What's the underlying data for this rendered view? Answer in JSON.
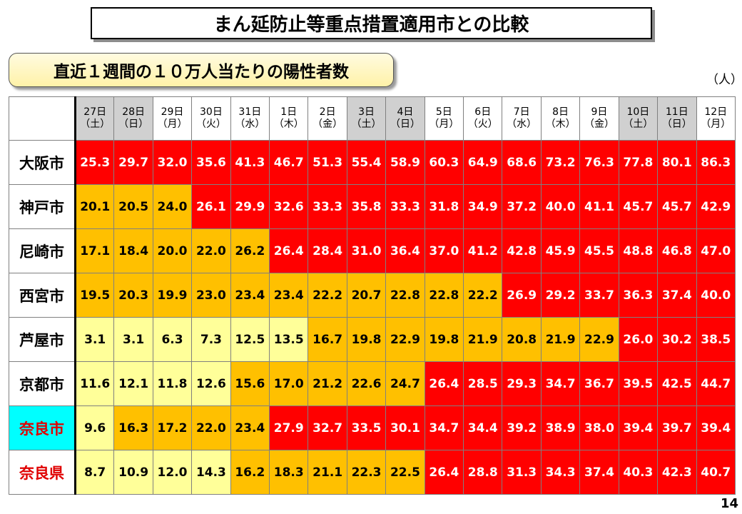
{
  "title": "まん延防止等重点措置適用市との比較",
  "subtitle": "直近１週間の１０万人当たりの陽性者数",
  "unit": "（人）",
  "page_number": "14",
  "colors": {
    "low": "#ffff99",
    "mid": "#ffc000",
    "high": "#ff0000",
    "highlight": "#00ffff"
  },
  "chart_data": {
    "type": "table",
    "columns": [
      {
        "day": "27日",
        "weekday": "（土）",
        "weekend": true
      },
      {
        "day": "28日",
        "weekday": "（日）",
        "weekend": true
      },
      {
        "day": "29日",
        "weekday": "（月）",
        "weekend": false
      },
      {
        "day": "30日",
        "weekday": "（火）",
        "weekend": false
      },
      {
        "day": "31日",
        "weekday": "（水）",
        "weekend": false
      },
      {
        "day": "1日",
        "weekday": "（木）",
        "weekend": false
      },
      {
        "day": "2日",
        "weekday": "（金）",
        "weekend": false
      },
      {
        "day": "3日",
        "weekday": "（土）",
        "weekend": true
      },
      {
        "day": "4日",
        "weekday": "（日）",
        "weekend": true
      },
      {
        "day": "5日",
        "weekday": "（月）",
        "weekend": false
      },
      {
        "day": "6日",
        "weekday": "（火）",
        "weekend": false
      },
      {
        "day": "7日",
        "weekday": "（水）",
        "weekend": false
      },
      {
        "day": "8日",
        "weekday": "（木）",
        "weekend": false
      },
      {
        "day": "9日",
        "weekday": "（金）",
        "weekend": false
      },
      {
        "day": "10日",
        "weekday": "（土）",
        "weekend": true
      },
      {
        "day": "11日",
        "weekday": "（日）",
        "weekend": true
      },
      {
        "day": "12日",
        "weekday": "（月）",
        "weekend": false
      }
    ],
    "rows": [
      {
        "city": "大阪市",
        "name_color": "black",
        "highlight": false,
        "values": [
          "25.3",
          "29.7",
          "32.0",
          "35.6",
          "41.3",
          "46.7",
          "51.3",
          "55.4",
          "58.9",
          "60.3",
          "64.9",
          "68.6",
          "73.2",
          "76.3",
          "77.8",
          "80.1",
          "86.3"
        ],
        "levels": [
          "high",
          "high",
          "high",
          "high",
          "high",
          "high",
          "high",
          "high",
          "high",
          "high",
          "high",
          "high",
          "high",
          "high",
          "high",
          "high",
          "high"
        ]
      },
      {
        "city": "神戸市",
        "name_color": "black",
        "highlight": false,
        "values": [
          "20.1",
          "20.5",
          "24.0",
          "26.1",
          "29.9",
          "32.6",
          "33.3",
          "35.8",
          "33.3",
          "31.8",
          "34.9",
          "37.2",
          "40.0",
          "41.1",
          "45.7",
          "45.7",
          "42.9"
        ],
        "levels": [
          "mid",
          "mid",
          "mid",
          "high",
          "high",
          "high",
          "high",
          "high",
          "high",
          "high",
          "high",
          "high",
          "high",
          "high",
          "high",
          "high",
          "high"
        ]
      },
      {
        "city": "尼崎市",
        "name_color": "black",
        "highlight": false,
        "values": [
          "17.1",
          "18.4",
          "20.0",
          "22.0",
          "26.2",
          "26.4",
          "28.4",
          "31.0",
          "36.4",
          "37.0",
          "41.2",
          "42.8",
          "45.9",
          "45.5",
          "48.8",
          "46.8",
          "47.0"
        ],
        "levels": [
          "mid",
          "mid",
          "mid",
          "mid",
          "mid",
          "high",
          "high",
          "high",
          "high",
          "high",
          "high",
          "high",
          "high",
          "high",
          "high",
          "high",
          "high"
        ]
      },
      {
        "city": "西宮市",
        "name_color": "black",
        "highlight": false,
        "values": [
          "19.5",
          "20.3",
          "19.9",
          "23.0",
          "23.4",
          "23.4",
          "22.2",
          "20.7",
          "22.8",
          "22.8",
          "22.2",
          "26.9",
          "29.2",
          "33.7",
          "36.3",
          "37.4",
          "40.0"
        ],
        "levels": [
          "mid",
          "mid",
          "mid",
          "mid",
          "mid",
          "mid",
          "mid",
          "mid",
          "mid",
          "mid",
          "mid",
          "high",
          "high",
          "high",
          "high",
          "high",
          "high"
        ]
      },
      {
        "city": "芦屋市",
        "name_color": "black",
        "highlight": false,
        "values": [
          "3.1",
          "3.1",
          "6.3",
          "7.3",
          "12.5",
          "13.5",
          "16.7",
          "19.8",
          "22.9",
          "19.8",
          "21.9",
          "20.8",
          "21.9",
          "22.9",
          "26.0",
          "30.2",
          "38.5"
        ],
        "levels": [
          "low",
          "low",
          "low",
          "low",
          "low",
          "low",
          "mid",
          "mid",
          "mid",
          "mid",
          "mid",
          "mid",
          "mid",
          "mid",
          "high",
          "high",
          "high"
        ]
      },
      {
        "city": "京都市",
        "name_color": "black",
        "highlight": false,
        "values": [
          "11.6",
          "12.1",
          "11.8",
          "12.6",
          "15.6",
          "17.0",
          "21.2",
          "22.6",
          "24.7",
          "26.4",
          "28.5",
          "29.3",
          "34.7",
          "36.7",
          "39.5",
          "42.5",
          "44.7"
        ],
        "levels": [
          "low",
          "low",
          "low",
          "low",
          "mid",
          "mid",
          "mid",
          "mid",
          "mid",
          "high",
          "high",
          "high",
          "high",
          "high",
          "high",
          "high",
          "high"
        ]
      },
      {
        "city": "奈良市",
        "name_color": "red",
        "highlight": true,
        "values": [
          "9.6",
          "16.3",
          "17.2",
          "22.0",
          "23.4",
          "27.9",
          "32.7",
          "33.5",
          "30.1",
          "34.7",
          "34.4",
          "39.2",
          "38.9",
          "38.0",
          "39.4",
          "39.7",
          "39.4"
        ],
        "levels": [
          "low",
          "mid",
          "mid",
          "mid",
          "mid",
          "high",
          "high",
          "high",
          "high",
          "high",
          "high",
          "high",
          "high",
          "high",
          "high",
          "high",
          "high"
        ]
      },
      {
        "city": "奈良県",
        "name_color": "red",
        "highlight": false,
        "values": [
          "8.7",
          "10.9",
          "12.0",
          "14.3",
          "16.2",
          "18.3",
          "21.1",
          "22.3",
          "22.5",
          "26.4",
          "28.8",
          "31.3",
          "34.3",
          "37.4",
          "40.3",
          "42.3",
          "40.7"
        ],
        "levels": [
          "low",
          "low",
          "low",
          "low",
          "mid",
          "mid",
          "mid",
          "mid",
          "mid",
          "high",
          "high",
          "high",
          "high",
          "high",
          "high",
          "high",
          "high"
        ]
      }
    ]
  }
}
